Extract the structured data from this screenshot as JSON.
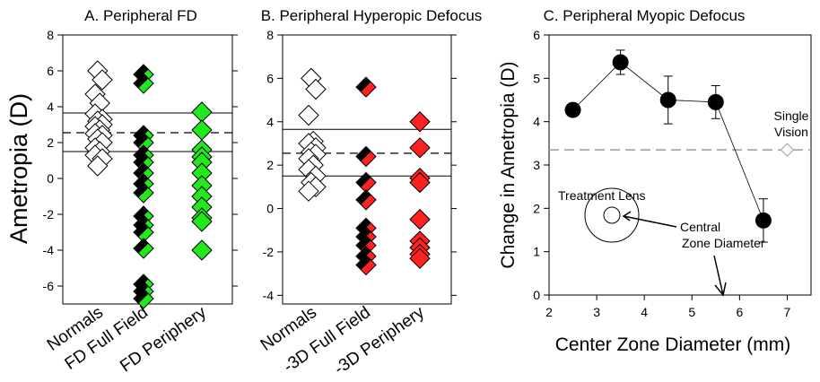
{
  "colors": {
    "open_fill": "#ffffff",
    "black": "#000000",
    "green": "#22e81e",
    "red": "#ff2020",
    "sv_fill": "#ffffff",
    "sv_stroke": "#9a9a9a",
    "ref_line": "#000000",
    "dashed_grey": "#9a9a9a"
  },
  "chart_data": [
    {
      "type": "scatter",
      "title": "A. Peripheral FD",
      "ylabel": "Ametropia (D)",
      "ylim": [
        -7,
        8
      ],
      "yticks": [
        "-6",
        "-4",
        "-2",
        "0",
        "2",
        "4",
        "6",
        "8"
      ],
      "categories": [
        "Normals",
        "FD Full Field",
        "FD Periphery"
      ],
      "reference_lines": {
        "solid": [
          3.65,
          1.5
        ],
        "dashed": [
          2.55
        ]
      },
      "series": [
        {
          "category": "Normals",
          "style": "open",
          "values": [
            6.0,
            5.5,
            4.7,
            4.2,
            3.6,
            3.3,
            3.2,
            3.0,
            2.9,
            2.7,
            2.5,
            2.4,
            2.2,
            2.0,
            1.7,
            1.5,
            1.3,
            1.1,
            0.7
          ]
        },
        {
          "category": "FD Full Field",
          "style": "half-black-green",
          "values": [
            5.8,
            5.3,
            2.4,
            2.0,
            1.3,
            0.9,
            0.3,
            -0.3,
            -0.8,
            -2.1,
            -2.6,
            -3.0,
            -3.9,
            -5.9,
            -6.3,
            -6.7
          ]
        },
        {
          "category": "FD Periphery",
          "style": "green",
          "values": [
            3.7,
            2.7,
            1.6,
            1.2,
            0.9,
            0.3,
            -0.4,
            -1.0,
            -1.6,
            -2.2,
            -2.4,
            -4.0
          ]
        }
      ]
    },
    {
      "type": "scatter",
      "title": "B. Peripheral Hyperopic Defocus",
      "ylim": [
        -4.4,
        8
      ],
      "yticks": [
        "-4",
        "-2",
        "0",
        "2",
        "4",
        "6",
        "8"
      ],
      "categories": [
        "Normals",
        "-3D Full Field",
        "-3D Periphery"
      ],
      "reference_lines": {
        "solid": [
          3.65,
          1.5
        ],
        "dashed": [
          2.55
        ]
      },
      "series": [
        {
          "category": "Normals",
          "style": "open",
          "values": [
            6.0,
            5.5,
            4.3,
            3.1,
            3.0,
            2.8,
            2.6,
            2.5,
            2.3,
            2.0,
            1.8,
            1.5,
            1.2,
            1.0,
            0.8
          ]
        },
        {
          "category": "-3D Full Field",
          "style": "half-black-red",
          "values": [
            5.6,
            2.4,
            1.2,
            0.4,
            -0.9,
            -1.3,
            -1.7,
            -2.2,
            -2.6
          ]
        },
        {
          "category": "-3D Periphery",
          "style": "red",
          "values": [
            4.0,
            2.8,
            1.4,
            1.2,
            -0.5,
            -1.5,
            -1.8,
            -2.1,
            -2.3
          ]
        }
      ]
    },
    {
      "type": "line",
      "title": "C. Peripheral Myopic Defocus",
      "xlabel": "Center Zone Diameter (mm)",
      "ylabel": "Change in Ametropia (D)",
      "xlim": [
        2,
        7.5
      ],
      "ylim": [
        0,
        6
      ],
      "xticks": [
        "2",
        "3",
        "4",
        "5",
        "6",
        "7"
      ],
      "yticks": [
        "0",
        "1",
        "2",
        "3",
        "4",
        "5",
        "6"
      ],
      "series": [
        {
          "x": [
            2.5,
            3.5,
            4.5,
            5.5,
            6.5
          ],
          "y": [
            4.27,
            5.37,
            4.5,
            4.45,
            1.72
          ],
          "error": [
            0,
            0.28,
            0.55,
            0.38,
            0.5
          ]
        }
      ],
      "single_vision": {
        "x": 7.0,
        "y": 3.35,
        "error": 0.12,
        "label_line1": "Single",
        "label_line2": "Vision"
      },
      "treatment_lens_label": "Treatment Lens",
      "central_zone_label_line1": "Central",
      "central_zone_label_line2": "Zone Diameter"
    }
  ]
}
